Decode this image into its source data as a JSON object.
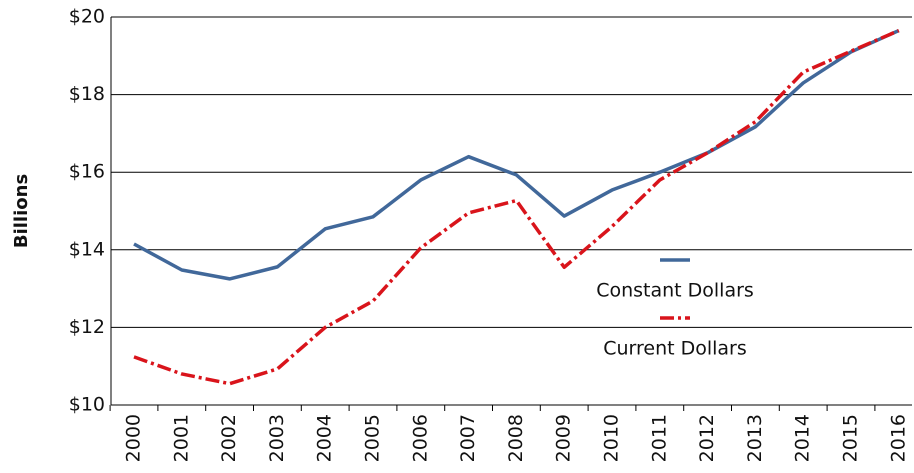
{
  "chart_data": {
    "type": "line",
    "y_label": "Billions",
    "categories": [
      "2000",
      "2001",
      "2002",
      "2003",
      "2004",
      "2005",
      "2006",
      "2007",
      "2008",
      "2009",
      "2010",
      "2011",
      "2012",
      "2013",
      "2014",
      "2015",
      "2016"
    ],
    "series": [
      {
        "name": "Constant Dollars",
        "color": "#41689a",
        "dashed": false,
        "values": [
          14.15,
          13.48,
          13.25,
          13.56,
          14.54,
          14.85,
          15.8,
          16.4,
          15.93,
          14.87,
          15.54,
          16.0,
          16.5,
          17.17,
          18.3,
          19.1,
          19.65
        ]
      },
      {
        "name": "Current Dollars",
        "color": "#d9141b",
        "dashed": true,
        "values": [
          11.24,
          10.8,
          10.55,
          10.93,
          12.0,
          12.68,
          14.05,
          14.95,
          15.27,
          13.55,
          14.6,
          15.8,
          16.5,
          17.3,
          18.58,
          19.12,
          19.65
        ]
      }
    ],
    "ylim": [
      10,
      20
    ],
    "yticks": [
      {
        "value": 10,
        "label": "$10"
      },
      {
        "value": 12,
        "label": "$12"
      },
      {
        "value": 14,
        "label": "$14"
      },
      {
        "value": 16,
        "label": "$16"
      },
      {
        "value": 18,
        "label": "$18"
      },
      {
        "value": 20,
        "label": "$20"
      }
    ],
    "grid": true
  }
}
